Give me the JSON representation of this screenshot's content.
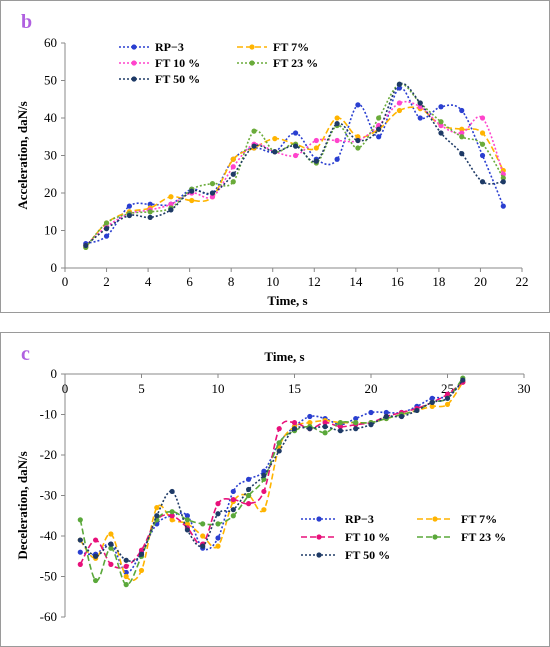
{
  "panels": [
    {
      "letter": "b"
    },
    {
      "letter": "c"
    }
  ],
  "colors": {
    "RP-3": "#2a3fd0",
    "FT 7%": "#ffb400",
    "FT 10 %": "#ff44cc",
    "FT 23 %": "#6aab3a",
    "FT 50 %": "#1e3a66",
    "FT 10 % (c)": "#e8107a",
    "FT 23 % (c)": "#5aa83a"
  },
  "chart_data": [
    {
      "type": "line",
      "title": "",
      "xlabel": "Time, s",
      "ylabel": "Acceleration,  daN/s",
      "xlim": [
        0,
        22
      ],
      "ylim": [
        0,
        60
      ],
      "xticks": [
        "0",
        "2",
        "4",
        "6",
        "8",
        "10",
        "12",
        "14",
        "16",
        "18",
        "20",
        "22"
      ],
      "yticks": [
        "0",
        "10",
        "20",
        "30",
        "40",
        "50",
        "60"
      ],
      "legend": [
        "RP−3",
        "FT 7%",
        "FT 10 %",
        "FT 23 %",
        "FT 50 %"
      ],
      "legend_position": "top-left",
      "series": [
        {
          "name": "RP−3",
          "color": "#2a3fd0",
          "style": "dotted",
          "x": [
            1,
            2,
            3.1,
            4.1,
            5.1,
            6.1,
            7.1,
            8.1,
            9.1,
            10.1,
            11.1,
            12.1,
            13.1,
            14.1,
            15.1,
            16.1,
            17.1,
            18.1,
            19.1,
            20.1,
            21.1
          ],
          "y": [
            6.5,
            8.5,
            16.5,
            17,
            17,
            21,
            20,
            29,
            32,
            31,
            36,
            29,
            29,
            43.5,
            35,
            48,
            40,
            43,
            42,
            30,
            16.5
          ]
        },
        {
          "name": "FT 7%",
          "color": "#ffb400",
          "style": "dashed",
          "x": [
            1,
            2,
            3.1,
            4.1,
            5.1,
            6.1,
            7.1,
            8.1,
            9.1,
            10.1,
            11.1,
            12.1,
            13.1,
            14.1,
            15.1,
            16.1,
            17.1,
            18.1,
            19.1,
            20.1,
            21.1
          ],
          "y": [
            5.5,
            12,
            15,
            16,
            19,
            18,
            19,
            29,
            32,
            34.5,
            33,
            32,
            40,
            35,
            37,
            42,
            42.5,
            38,
            37,
            36,
            26
          ]
        },
        {
          "name": "FT 10 %",
          "color": "#ff44cc",
          "style": "dotted",
          "x": [
            1,
            2,
            3.1,
            4.1,
            5.1,
            6.1,
            7.1,
            8.1,
            9.1,
            10.1,
            11.1,
            12.1,
            13.1,
            14.1,
            15.1,
            16.1,
            17.1,
            18.1,
            19.1,
            20.1,
            21.1
          ],
          "y": [
            6,
            11,
            14.5,
            15.5,
            17,
            20,
            19,
            27,
            33,
            31,
            30,
            34,
            34,
            34,
            38,
            44,
            43,
            38,
            36,
            40,
            25
          ]
        },
        {
          "name": "FT 23 %",
          "color": "#6aab3a",
          "style": "dotted",
          "x": [
            1,
            2,
            3.1,
            4.1,
            5.1,
            6.1,
            7.1,
            8.1,
            9.1,
            10.1,
            11.1,
            12.1,
            13.1,
            14.1,
            15.1,
            16.1,
            17.1,
            18.1,
            19.1,
            20.1,
            21.1
          ],
          "y": [
            5.5,
            12,
            14.5,
            15,
            16,
            21,
            22.5,
            23,
            36.5,
            31,
            33,
            28,
            38,
            32,
            40,
            49,
            44,
            39,
            35,
            33,
            24
          ]
        },
        {
          "name": "FT 50 %",
          "color": "#1e3a66",
          "style": "dotted",
          "x": [
            1,
            2,
            3.1,
            4.1,
            5.1,
            6.1,
            7.1,
            8.1,
            9.1,
            10.1,
            11.1,
            12.1,
            13.1,
            14.1,
            15.1,
            16.1,
            17.1,
            18.1,
            19.1,
            20.1,
            21.1
          ],
          "y": [
            6,
            10.5,
            14,
            13.5,
            15.5,
            20.5,
            20,
            25,
            32.5,
            31,
            32.5,
            28.5,
            38.5,
            34,
            37,
            49,
            44,
            36,
            30.5,
            23,
            23
          ]
        }
      ]
    },
    {
      "type": "line",
      "title": "",
      "xlabel": "Time, s",
      "ylabel": "Deceleration,  daN/s",
      "xlim": [
        0,
        30
      ],
      "ylim": [
        -60,
        0
      ],
      "xticks": [
        "0",
        "5",
        "10",
        "15",
        "20",
        "25",
        "30"
      ],
      "yticks": [
        "0",
        "-10",
        "-20",
        "-30",
        "-40",
        "-50",
        "-60"
      ],
      "legend": [
        "RP−3",
        "FT 7%",
        "FT 10 %",
        "FT 23 %",
        "FT 50 %"
      ],
      "legend_position": "center-right",
      "series": [
        {
          "name": "RP−3",
          "color": "#2a3fd0",
          "style": "dotted",
          "x": [
            1,
            2,
            3,
            4,
            5,
            6,
            7,
            8,
            9,
            10,
            11,
            12,
            13,
            14,
            15,
            16,
            17,
            18,
            19,
            20,
            21,
            22,
            23,
            24,
            25,
            26
          ],
          "y": [
            -44,
            -44.5,
            -42,
            -49,
            -44,
            -37,
            -35,
            -35,
            -43,
            -40.5,
            -29,
            -26,
            -24,
            -17,
            -13,
            -10.5,
            -11,
            -12.5,
            -11,
            -9.5,
            -9.5,
            -9.5,
            -8,
            -6,
            -5.5,
            -2
          ]
        },
        {
          "name": "FT 7%",
          "color": "#ffb400",
          "style": "dashed",
          "x": [
            1,
            2,
            3,
            4,
            5,
            6,
            7,
            8,
            9,
            10,
            11,
            12,
            13,
            14,
            15,
            16,
            17,
            18,
            19,
            20,
            21,
            22,
            23,
            24,
            25,
            26
          ],
          "y": [
            -41,
            -45.5,
            -39.5,
            -50,
            -48.5,
            -33,
            -36,
            -37,
            -40,
            -42.5,
            -31.5,
            -30,
            -33.5,
            -18,
            -13,
            -12,
            -11.5,
            -12,
            -12,
            -12,
            -11,
            -10,
            -9,
            -8,
            -7.5,
            -2
          ]
        },
        {
          "name": "FT 10 %",
          "color": "#e8107a",
          "style": "dashed",
          "x": [
            1,
            2,
            3,
            4,
            5,
            6,
            7,
            8,
            9,
            10,
            11,
            12,
            13,
            14,
            15,
            16,
            17,
            18,
            19,
            20,
            21,
            22,
            23,
            24,
            25,
            26
          ],
          "y": [
            -47,
            -41,
            -47,
            -47.5,
            -43.5,
            -36,
            -35,
            -38,
            -42,
            -32,
            -31,
            -32,
            -29,
            -13.5,
            -12,
            -13.5,
            -12,
            -13,
            -12.5,
            -12,
            -10.5,
            -9.5,
            -8.5,
            -7,
            -5,
            -2
          ]
        },
        {
          "name": "FT 23 %",
          "color": "#5aa83a",
          "style": "dashed",
          "x": [
            1,
            2,
            3,
            4,
            5,
            6,
            7,
            8,
            9,
            10,
            11,
            12,
            13,
            14,
            15,
            16,
            17,
            18,
            19,
            20,
            21,
            22,
            23,
            24,
            25,
            26
          ],
          "y": [
            -36,
            -51,
            -43,
            -52,
            -45,
            -36,
            -34,
            -36,
            -37,
            -37,
            -35,
            -30,
            -26,
            -17,
            -14,
            -13,
            -14.5,
            -12,
            -12,
            -12,
            -11,
            -10,
            -9,
            -7,
            -6,
            -1
          ]
        },
        {
          "name": "FT 50 %",
          "color": "#1e3a66",
          "style": "dotted",
          "x": [
            1,
            2,
            3,
            4,
            5,
            6,
            7,
            8,
            9,
            10,
            11,
            12,
            13,
            14,
            15,
            16,
            17,
            18,
            19,
            20,
            21,
            22,
            23,
            24,
            25,
            26
          ],
          "y": [
            -41,
            -45,
            -42,
            -46,
            -44.5,
            -35,
            -29,
            -38.5,
            -42.5,
            -34.5,
            -33.5,
            -28.5,
            -25,
            -19,
            -13.5,
            -13.5,
            -13,
            -14,
            -13.5,
            -12.5,
            -10.5,
            -10.5,
            -9,
            -7,
            -6,
            -1.5
          ]
        }
      ]
    }
  ]
}
